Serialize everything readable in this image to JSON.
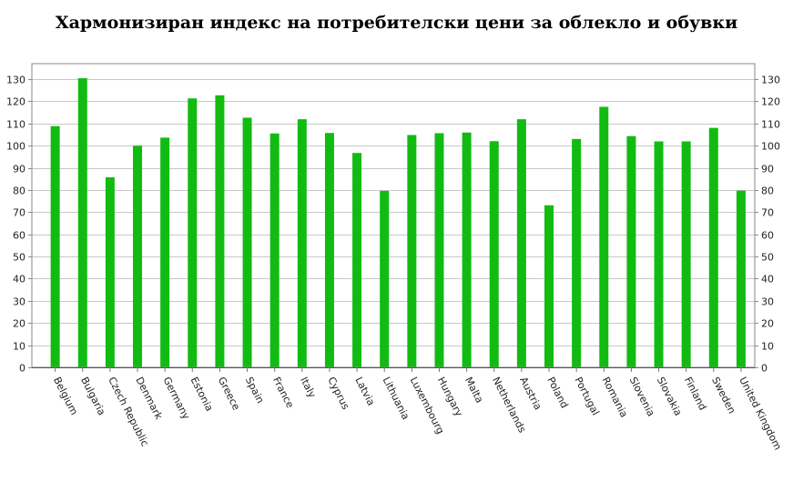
{
  "chart_data": {
    "type": "bar",
    "title": "Хармонизиран индекс на потребителски цени за облекло и обувки",
    "categories": [
      "Belgium",
      "Bulgaria",
      "Czech Republic",
      "Denmark",
      "Germany",
      "Estonia",
      "Greece",
      "Spain",
      "France",
      "Italy",
      "Cyprus",
      "Latvia",
      "Lithuania",
      "Luxembourg",
      "Hungary",
      "Malta",
      "Netherlands",
      "Austria",
      "Poland",
      "Portugal",
      "Romania",
      "Slovenia",
      "Slovakia",
      "Finland",
      "Sweden",
      "United Kingdom"
    ],
    "values": [
      108.8,
      130.4,
      85.7,
      100.0,
      103.6,
      121.3,
      122.7,
      112.6,
      105.5,
      111.9,
      105.7,
      96.7,
      79.6,
      104.8,
      105.6,
      105.9,
      102.0,
      111.9,
      73.1,
      103.0,
      117.5,
      104.3,
      101.9,
      101.9,
      108.0,
      79.7
    ],
    "ylim": [
      0,
      130
    ],
    "yticks": [
      0,
      10,
      20,
      30,
      40,
      50,
      60,
      70,
      80,
      90,
      100,
      110,
      120,
      130
    ],
    "grid": true,
    "bar_color": "#12bb12",
    "grid_color": "#c8c8c8",
    "axis_color": "#8a8a8a"
  }
}
